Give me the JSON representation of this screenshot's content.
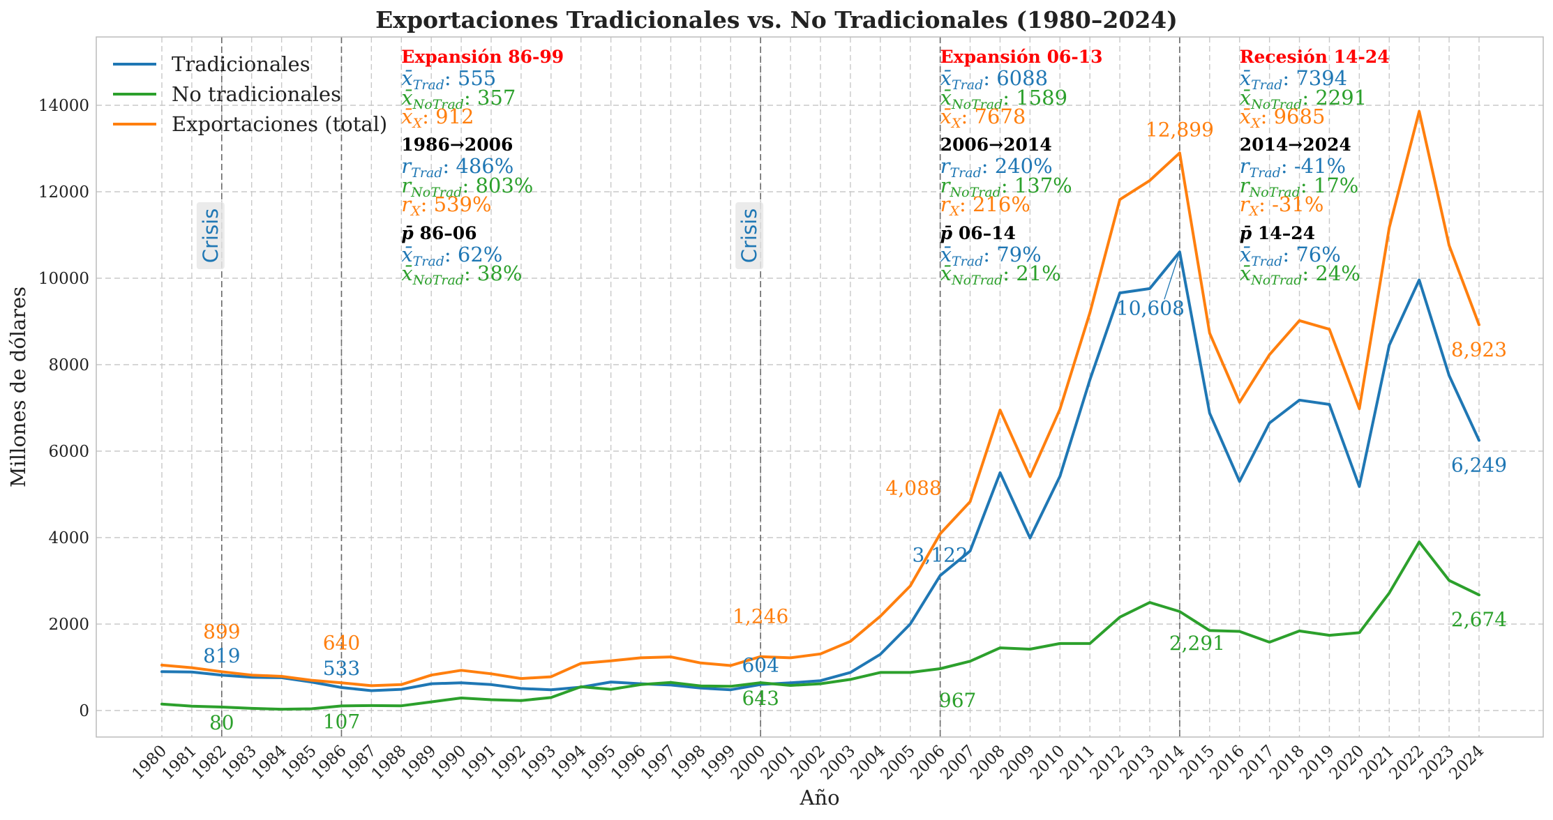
{
  "chart_data": {
    "type": "line",
    "title": "Exportaciones Tradicionales vs. No Tradicionales (1980–2024)",
    "xlabel": "Año",
    "ylabel": "Millones de dólares",
    "ylim": [
      -600,
      15600
    ],
    "yticks": [
      0,
      2000,
      4000,
      6000,
      8000,
      10000,
      12000,
      14000
    ],
    "grid": true,
    "legend_position": "top-left",
    "x": [
      1980,
      1981,
      1982,
      1983,
      1984,
      1985,
      1986,
      1987,
      1988,
      1989,
      1990,
      1991,
      1992,
      1993,
      1994,
      1995,
      1996,
      1997,
      1998,
      1999,
      2000,
      2001,
      2002,
      2003,
      2004,
      2005,
      2006,
      2007,
      2008,
      2009,
      2010,
      2011,
      2012,
      2013,
      2014,
      2015,
      2016,
      2017,
      2018,
      2019,
      2020,
      2021,
      2022,
      2023,
      2024
    ],
    "series": [
      {
        "name": "Tradicionales",
        "color": "#1f77b4",
        "values": [
          900,
          890,
          819,
          770,
          760,
          660,
          533,
          460,
          490,
          620,
          640,
          600,
          510,
          480,
          540,
          660,
          620,
          590,
          520,
          480,
          604,
          640,
          690,
          880,
          1300,
          2000,
          3122,
          3690,
          5500,
          3990,
          5420,
          7650,
          9660,
          9760,
          10608,
          6880,
          5300,
          6650,
          7180,
          7080,
          5180,
          8450,
          9960,
          7750,
          6249
        ]
      },
      {
        "name": "No tradicionales",
        "color": "#2ca02c",
        "values": [
          150,
          100,
          80,
          50,
          30,
          40,
          107,
          115,
          110,
          200,
          290,
          250,
          230,
          300,
          550,
          490,
          600,
          650,
          570,
          560,
          643,
          580,
          620,
          720,
          880,
          880,
          967,
          1140,
          1450,
          1420,
          1550,
          1550,
          2160,
          2500,
          2291,
          1850,
          1830,
          1580,
          1840,
          1740,
          1800,
          2720,
          3900,
          3010,
          2674
        ]
      },
      {
        "name": "Exportaciones (total)",
        "color": "#ff7f0e",
        "values": [
          1050,
          990,
          899,
          820,
          790,
          700,
          640,
          575,
          600,
          820,
          930,
          850,
          740,
          780,
          1090,
          1150,
          1220,
          1240,
          1100,
          1040,
          1246,
          1220,
          1310,
          1600,
          2180,
          2880,
          4088,
          4830,
          6950,
          5410,
          6970,
          9200,
          11820,
          12260,
          12899,
          8730,
          7130,
          8230,
          9020,
          8820,
          6980,
          11170,
          13860,
          10760,
          8923
        ]
      }
    ],
    "point_labels": [
      {
        "series": 2,
        "x": 1982,
        "text": "899",
        "pos": "above2"
      },
      {
        "series": 0,
        "x": 1982,
        "text": "819",
        "pos": "above1"
      },
      {
        "series": 1,
        "x": 1982,
        "text": "80",
        "pos": "below"
      },
      {
        "series": 2,
        "x": 1986,
        "text": "640",
        "pos": "above2"
      },
      {
        "series": 0,
        "x": 1986,
        "text": "533",
        "pos": "above1"
      },
      {
        "series": 1,
        "x": 1986,
        "text": "107",
        "pos": "below"
      },
      {
        "series": 2,
        "x": 2000,
        "text": "1,246",
        "pos": "above2"
      },
      {
        "series": 0,
        "x": 2000,
        "text": "604",
        "pos": "above1"
      },
      {
        "series": 1,
        "x": 2000,
        "text": "643",
        "pos": "below"
      },
      {
        "series": 2,
        "x": 2006,
        "text": "4,088",
        "pos": "upleft"
      },
      {
        "series": 0,
        "x": 2006,
        "text": "3,122",
        "pos": "downleft"
      },
      {
        "series": 1,
        "x": 2006,
        "text": "967",
        "pos": "belowleft"
      },
      {
        "series": 2,
        "x": 2014,
        "text": "12,899",
        "pos": "topcenter"
      },
      {
        "series": 0,
        "x": 2014,
        "text": "10,608",
        "pos": "leaderleft"
      },
      {
        "series": 1,
        "x": 2014,
        "text": "2,291",
        "pos": "belowleft"
      },
      {
        "series": 2,
        "x": 2024,
        "text": "8,923",
        "pos": "belowcenter"
      },
      {
        "series": 0,
        "x": 2024,
        "text": "6,249",
        "pos": "belowcenter"
      },
      {
        "series": 1,
        "x": 2024,
        "text": "2,674",
        "pos": "belowcenter"
      }
    ],
    "vlines": [
      1982,
      1986,
      2000,
      2006,
      2014
    ],
    "crisis_labels": [
      {
        "x": 1982,
        "text": "Crisis"
      },
      {
        "x": 2000,
        "text": "Crisis"
      }
    ],
    "annotations": [
      {
        "x": 1988,
        "head": "Expansión 86-99",
        "means": {
          "trad": "555",
          "notrad": "357",
          "x": "912"
        },
        "growth_head": "1986→2006",
        "growth": {
          "trad": "486%",
          "notrad": "803%",
          "x": "539%"
        },
        "share_head": "86–06",
        "share": {
          "trad": "62%",
          "notrad": "38%"
        }
      },
      {
        "x": 2006,
        "head": "Expansión 06-13",
        "means": {
          "trad": "6088",
          "notrad": "1589",
          "x": "7678"
        },
        "growth_head": "2006→2014",
        "growth": {
          "trad": "240%",
          "notrad": "137%",
          "x": "216%"
        },
        "share_head": "06–14",
        "share": {
          "trad": "79%",
          "notrad": "21%"
        }
      },
      {
        "x": 2016,
        "head": "Recesión 14-24",
        "means": {
          "trad": "7394",
          "notrad": "2291",
          "x": "9685"
        },
        "growth_head": "2014→2024",
        "growth": {
          "trad": "-41%",
          "notrad": "17%",
          "x": "-31%"
        },
        "share_head": "14–24",
        "share": {
          "trad": "76%",
          "notrad": "24%"
        }
      }
    ],
    "colors": {
      "trad": "#1f77b4",
      "notrad": "#2ca02c",
      "total": "#ff7f0e",
      "head": "#ff0000"
    }
  }
}
